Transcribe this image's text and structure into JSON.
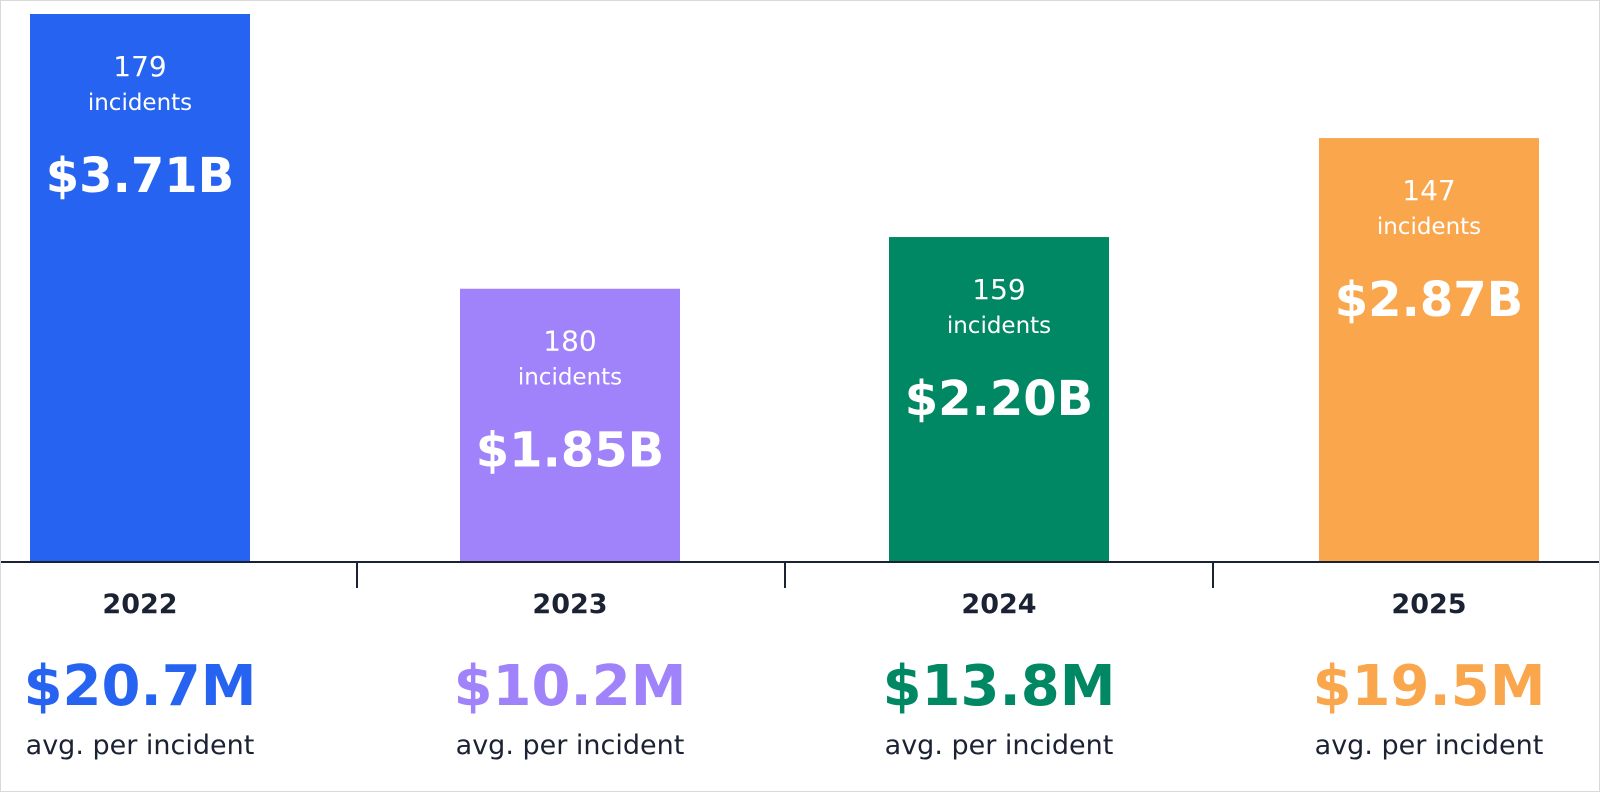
{
  "chart_data": {
    "type": "bar",
    "categories": [
      "2022",
      "2023",
      "2024",
      "2025"
    ],
    "values": [
      3.71,
      1.85,
      2.2,
      2.87
    ],
    "value_labels": [
      "$3.71B",
      "$1.85B",
      "$2.20B",
      "$2.87B"
    ],
    "incident_counts": [
      "179",
      "180",
      "159",
      "147"
    ],
    "incident_label": "incidents",
    "avg_per_incident": [
      "$20.7M",
      "$10.2M",
      "$13.8M",
      "$19.5M"
    ],
    "avg_label": "avg. per incident",
    "colors": [
      "#2563f0",
      "#a082fa",
      "#008763",
      "#f9a64c"
    ],
    "ylim": [
      0,
      3.71
    ],
    "title": "",
    "xlabel": "",
    "ylabel": ""
  }
}
